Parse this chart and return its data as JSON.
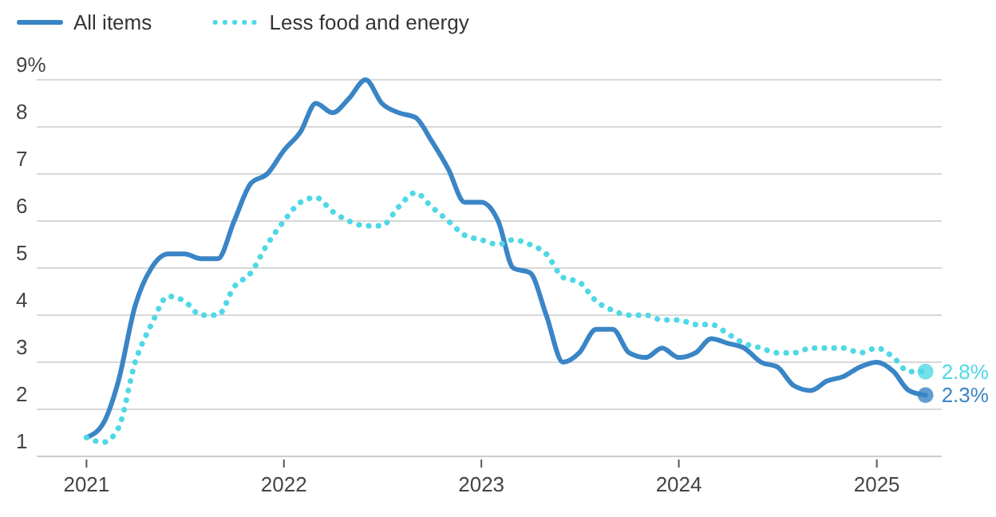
{
  "chart_data": {
    "type": "line",
    "x": [
      "2021-01",
      "2021-02",
      "2021-03",
      "2021-04",
      "2021-05",
      "2021-06",
      "2021-07",
      "2021-08",
      "2021-09",
      "2021-10",
      "2021-11",
      "2021-12",
      "2022-01",
      "2022-02",
      "2022-03",
      "2022-04",
      "2022-05",
      "2022-06",
      "2022-07",
      "2022-08",
      "2022-09",
      "2022-10",
      "2022-11",
      "2022-12",
      "2023-01",
      "2023-02",
      "2023-03",
      "2023-04",
      "2023-05",
      "2023-06",
      "2023-07",
      "2023-08",
      "2023-09",
      "2023-10",
      "2023-11",
      "2023-12",
      "2024-01",
      "2024-02",
      "2024-03",
      "2024-04",
      "2024-05",
      "2024-06",
      "2024-07",
      "2024-08",
      "2024-09",
      "2024-10",
      "2024-11",
      "2024-12",
      "2025-01",
      "2025-02",
      "2025-03",
      "2025-04"
    ],
    "series": [
      {
        "name": "All items",
        "color": "#3a85c6",
        "line_style": "solid",
        "values": [
          1.4,
          1.7,
          2.6,
          4.2,
          5.0,
          5.3,
          5.3,
          5.2,
          5.2,
          6.0,
          6.8,
          7.0,
          7.5,
          7.9,
          8.5,
          8.3,
          8.6,
          9.0,
          8.5,
          8.3,
          8.2,
          7.7,
          7.1,
          6.4,
          6.4,
          6.0,
          5.0,
          4.9,
          4.0,
          3.0,
          3.2,
          3.7,
          3.7,
          3.2,
          3.1,
          3.3,
          3.1,
          3.2,
          3.5,
          3.4,
          3.3,
          3.0,
          2.9,
          2.5,
          2.4,
          2.6,
          2.7,
          2.9,
          3.0,
          2.8,
          2.4,
          2.3
        ],
        "value_labels": [
          null,
          null,
          null,
          null,
          null,
          null,
          null,
          null,
          null,
          null,
          null,
          null,
          null,
          null,
          null,
          null,
          null,
          null,
          null,
          null,
          null,
          null,
          null,
          null,
          null,
          null,
          null,
          null,
          null,
          null,
          null,
          null,
          null,
          null,
          null,
          null,
          null,
          null,
          null,
          null,
          null,
          null,
          null,
          null,
          null,
          null,
          null,
          null,
          null,
          null,
          null,
          "2.3%"
        ]
      },
      {
        "name": "Less food and energy",
        "color": "#4fd8e6",
        "line_style": "dotted",
        "values": [
          1.4,
          1.3,
          1.6,
          3.0,
          3.8,
          4.4,
          4.3,
          4.0,
          4.0,
          4.6,
          4.9,
          5.5,
          6.0,
          6.4,
          6.5,
          6.2,
          6.0,
          5.9,
          5.9,
          6.3,
          6.6,
          6.3,
          6.0,
          5.7,
          5.6,
          5.5,
          5.6,
          5.5,
          5.3,
          4.8,
          4.7,
          4.3,
          4.1,
          4.0,
          4.0,
          3.9,
          3.9,
          3.8,
          3.8,
          3.6,
          3.4,
          3.3,
          3.2,
          3.2,
          3.3,
          3.3,
          3.3,
          3.2,
          3.3,
          3.1,
          2.8,
          2.8
        ],
        "value_labels": [
          null,
          null,
          null,
          null,
          null,
          null,
          null,
          null,
          null,
          null,
          null,
          null,
          null,
          null,
          null,
          null,
          null,
          null,
          null,
          null,
          null,
          null,
          null,
          null,
          null,
          null,
          null,
          null,
          null,
          null,
          null,
          null,
          null,
          null,
          null,
          null,
          null,
          null,
          null,
          null,
          null,
          null,
          null,
          null,
          null,
          null,
          null,
          null,
          null,
          null,
          null,
          "2.8%"
        ]
      }
    ],
    "xlim": [
      "2020-10",
      "2025-05"
    ],
    "xticks": [
      {
        "value": "2021-01",
        "label": "2021"
      },
      {
        "value": "2022-01",
        "label": "2022"
      },
      {
        "value": "2023-01",
        "label": "2023"
      },
      {
        "value": "2024-01",
        "label": "2024"
      },
      {
        "value": "2025-01",
        "label": "2025"
      }
    ],
    "ylim": [
      1,
      9
    ],
    "yticks": [
      1,
      2,
      3,
      4,
      5,
      6,
      7,
      8,
      {
        "value": 9,
        "label": "9%"
      }
    ],
    "grid": "y",
    "legend": "top left"
  }
}
